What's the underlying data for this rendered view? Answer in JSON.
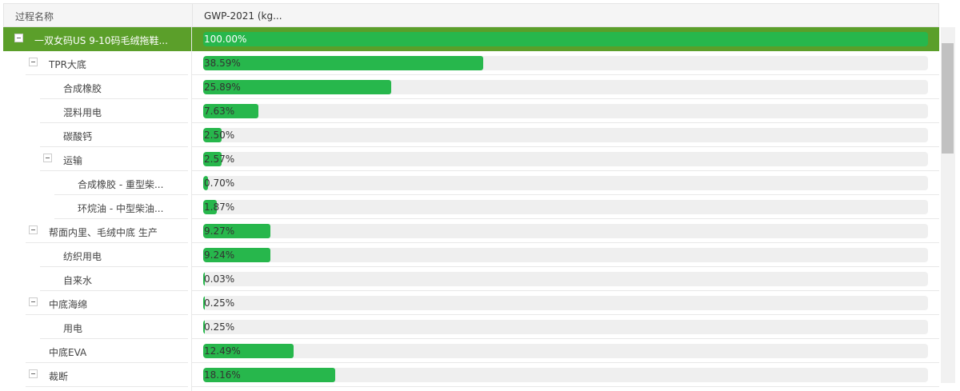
{
  "header": {
    "name_column": "过程名称",
    "value_column": "GWP-2021 (kg..."
  },
  "rows": [
    {
      "name": "一双女码US 9-10码毛绒拖鞋...",
      "level": 0,
      "expandable": true,
      "value": 100,
      "label": "100.00%"
    },
    {
      "name": "TPR大底",
      "level": 1,
      "expandable": true,
      "value": 38.59,
      "label": "38.59%"
    },
    {
      "name": "合成橡胶",
      "level": 2,
      "expandable": false,
      "value": 25.89,
      "label": "25.89%"
    },
    {
      "name": "混料用电",
      "level": 2,
      "expandable": false,
      "value": 7.63,
      "label": "7.63%"
    },
    {
      "name": "碳酸钙",
      "level": 2,
      "expandable": false,
      "value": 2.5,
      "label": "2.50%"
    },
    {
      "name": "运输",
      "level": 2,
      "expandable": true,
      "value": 2.57,
      "label": "2.57%"
    },
    {
      "name": "合成橡胶 - 重型柴...",
      "level": 3,
      "expandable": false,
      "value": 0.7,
      "label": "0.70%"
    },
    {
      "name": "环烷油 - 中型柴油...",
      "level": 3,
      "expandable": false,
      "value": 1.87,
      "label": "1.87%"
    },
    {
      "name": "帮面内里、毛绒中底 生产",
      "level": 1,
      "expandable": true,
      "value": 9.27,
      "label": "9.27%"
    },
    {
      "name": "纺织用电",
      "level": 2,
      "expandable": false,
      "value": 9.24,
      "label": "9.24%"
    },
    {
      "name": "自来水",
      "level": 2,
      "expandable": false,
      "value": 0.03,
      "label": "0.03%"
    },
    {
      "name": "中底海绵",
      "level": 1,
      "expandable": true,
      "value": 0.25,
      "label": "0.25%"
    },
    {
      "name": "用电",
      "level": 2,
      "expandable": false,
      "value": 0.25,
      "label": "0.25%"
    },
    {
      "name": "中底EVA",
      "level": 1,
      "expandable": false,
      "value": 12.49,
      "label": "12.49%"
    },
    {
      "name": "裁断",
      "level": 1,
      "expandable": true,
      "value": 18.16,
      "label": "18.16%"
    }
  ]
}
